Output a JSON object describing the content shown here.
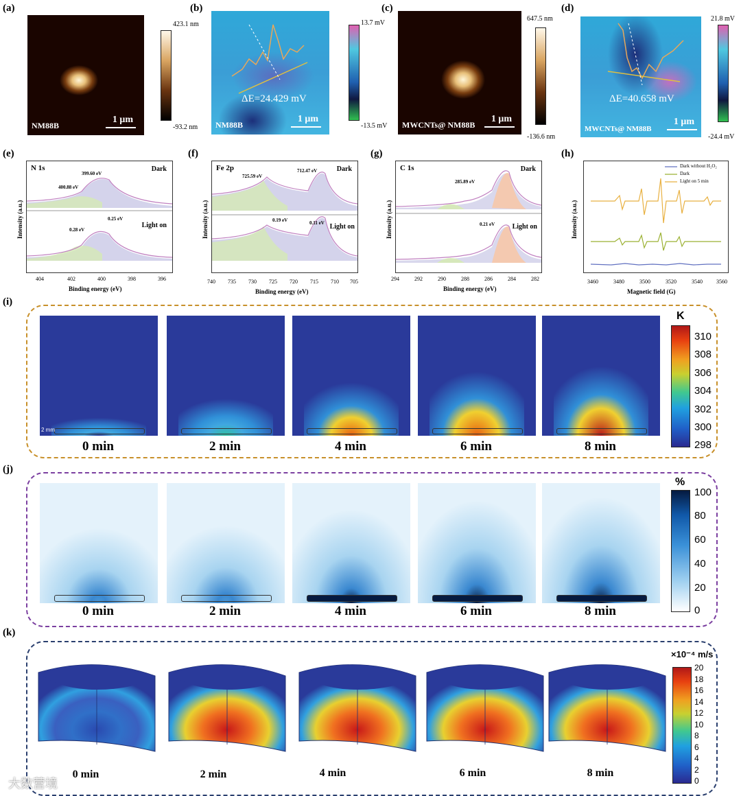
{
  "panels": {
    "a": {
      "label": "(a)",
      "sample": "NM88B",
      "scale": "1 μm",
      "cb_max": "423.1 nm",
      "cb_min": "-93.2 nm"
    },
    "b": {
      "label": "(b)",
      "sample": "NM88B",
      "scale": "1 μm",
      "delta": "ΔE=24.429 mV",
      "cb_max": "13.7 mV",
      "cb_min": "-13.5 mV"
    },
    "c": {
      "label": "(c)",
      "sample": "MWCNTs@ NM88B",
      "scale": "1 μm",
      "cb_max": "647.5 nm",
      "cb_min": "-136.6 nm"
    },
    "d": {
      "label": "(d)",
      "sample": "MWCNTs@ NM88B",
      "scale": "1 μm",
      "delta": "ΔE=40.658 mV",
      "cb_max": "21.8 mV",
      "cb_min": "-24.4 mV"
    },
    "e": {
      "label": "(e)",
      "title": "N 1s",
      "dark": "Dark",
      "light": "Light on",
      "peak1": "399.60 eV",
      "peak2": "400.88 eV",
      "shift1": "0.25 eV",
      "shift2": "0.28 eV",
      "xticks": [
        "404",
        "402",
        "400",
        "398",
        "396"
      ],
      "xlabel": "Binding energy (eV)",
      "ylabel": "Intensity (a.u.)"
    },
    "f": {
      "label": "(f)",
      "title": "Fe 2p",
      "dark": "Dark",
      "light": "Light on",
      "peak1": "725.59 eV",
      "peak2": "712.47 eV",
      "shift1": "0.19 eV",
      "shift2": "0.11 eV",
      "xticks": [
        "740",
        "735",
        "730",
        "725",
        "720",
        "715",
        "710",
        "705"
      ],
      "xlabel": "Binding energy (eV)",
      "ylabel": "Intensity (a.u.)"
    },
    "g": {
      "label": "(g)",
      "title": "C 1s",
      "dark": "Dark",
      "light": "Light on",
      "peak1": "285.89 eV",
      "shift1": "0.21 eV",
      "xticks": [
        "294",
        "292",
        "290",
        "288",
        "286",
        "284",
        "282"
      ],
      "xlabel": "Binding energy (eV)",
      "ylabel": "Intensity (a.u.)"
    },
    "h": {
      "label": "(h)",
      "legend": [
        "Dark without H₂O₂",
        "Dark",
        "Light on 5 min"
      ],
      "xticks": [
        "3460",
        "3480",
        "3500",
        "3520",
        "3540",
        "3560"
      ],
      "xlabel": "Magnetic field (G)",
      "ylabel": "Intensity (a.u.)"
    },
    "i": {
      "label": "(i)",
      "unit": "K",
      "times": [
        "0 min",
        "2 min",
        "4 min",
        "6 min",
        "8 min"
      ],
      "scale_note": "2 mm",
      "ticks": [
        "310",
        "308",
        "306",
        "304",
        "302",
        "300",
        "298"
      ]
    },
    "j": {
      "label": "(j)",
      "unit": "%",
      "times": [
        "0 min",
        "2 min",
        "4 min",
        "6 min",
        "8 min"
      ],
      "ticks": [
        "100",
        "80",
        "60",
        "40",
        "20",
        "0"
      ]
    },
    "k": {
      "label": "(k)",
      "unit": "×10⁻⁴ m/s",
      "times": [
        "0 min",
        "2 min",
        "4 min",
        "6 min",
        "8 min"
      ],
      "ticks": [
        "20",
        "18",
        "16",
        "14",
        "12",
        "10",
        "8",
        "6",
        "4",
        "2",
        "0"
      ]
    }
  },
  "colors": {
    "orange_box": "#c8902a",
    "purple_box": "#7b3fa0",
    "navy_box": "#2a3f6e"
  },
  "levels": {
    "i": [
      0.0,
      0.35,
      0.65,
      0.85,
      0.95
    ],
    "j": [
      0.08,
      0.15,
      0.6,
      0.85,
      0.95
    ],
    "k": [
      0.15,
      0.9,
      0.88,
      0.85,
      0.85
    ]
  },
  "watermark": "大数营境"
}
